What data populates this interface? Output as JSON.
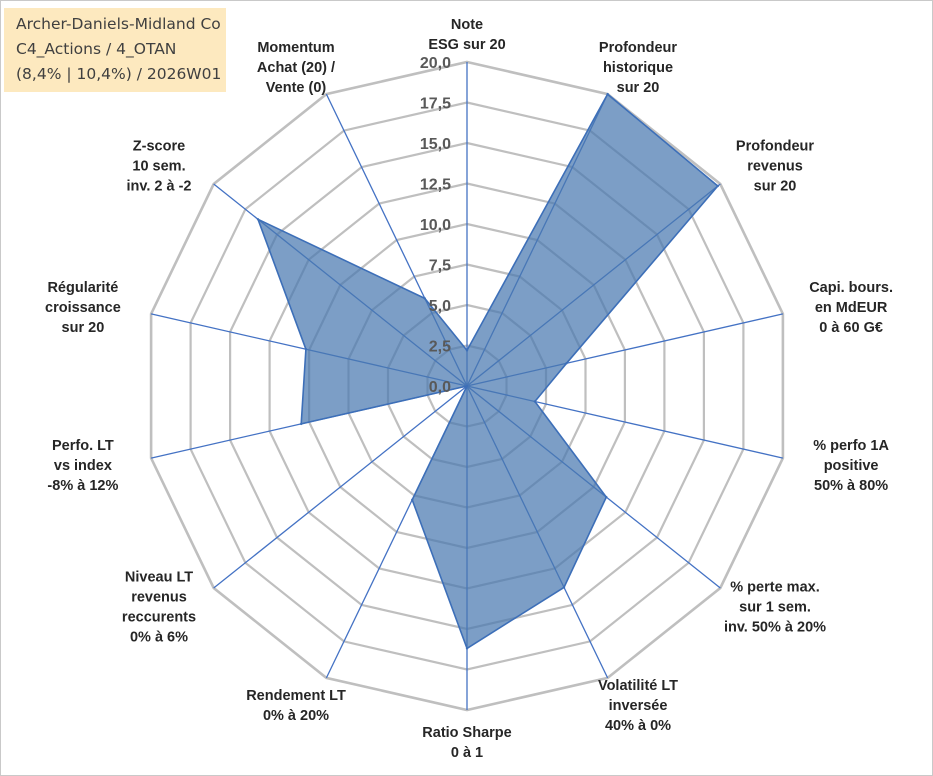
{
  "info_box": {
    "line1": "Archer-Daniels-Midland Co",
    "line2": "C4_Actions / 4_OTAN",
    "line3": "(8,4% | 10,4%) / 2026W01"
  },
  "chart_data": {
    "type": "radar",
    "title": "",
    "rmin": 0,
    "rmax": 20,
    "ticks": [
      0,
      2.5,
      5,
      7.5,
      10,
      12.5,
      15,
      17.5,
      20
    ],
    "tick_labels": [
      "0,0",
      "2,5",
      "5,0",
      "7,5",
      "10,0",
      "12,5",
      "15,0",
      "17,5",
      "20,0"
    ],
    "axes": [
      [
        "Note",
        "ESG sur 20"
      ],
      [
        "Profondeur",
        "historique",
        "sur 20"
      ],
      [
        "Profondeur",
        "revenus",
        "sur 20"
      ],
      [
        "Capi. bours.",
        "en MdEUR",
        "0 à 60 G€"
      ],
      [
        "% perfo 1A",
        "positive",
        "50% à 80%"
      ],
      [
        "% perte max.",
        "sur 1 sem.",
        "inv. 50% à 20%"
      ],
      [
        "Volatilité LT",
        "inversée",
        "40% à 0%"
      ],
      [
        "Ratio Sharpe",
        "0 à 1"
      ],
      [
        "Rendement LT",
        "0% à 20%"
      ],
      [
        "Niveau LT",
        "revenus",
        "reccurents",
        "0% à 6%"
      ],
      [
        "Perfo. LT",
        "vs index",
        "-8% à 12%"
      ],
      [
        "Régularité",
        "croissance",
        "sur 20"
      ],
      [
        "Z-score",
        "10 sem.",
        "inv. 2 à -2"
      ],
      [
        "Momentum",
        "Achat (20) /",
        "Vente (0)"
      ]
    ],
    "series": [
      {
        "name": "Archer-Daniels-Midland Co",
        "values": [
          2.2,
          20.0,
          19.8,
          6.3,
          4.3,
          11.0,
          13.8,
          16.2,
          7.8,
          0.0,
          10.5,
          10.2,
          16.5,
          6.0
        ],
        "color": "#4a78b0"
      }
    ],
    "grid_color": "#bfbfbf",
    "axis_color": "#4472c4",
    "fill_opacity": 0.72
  }
}
